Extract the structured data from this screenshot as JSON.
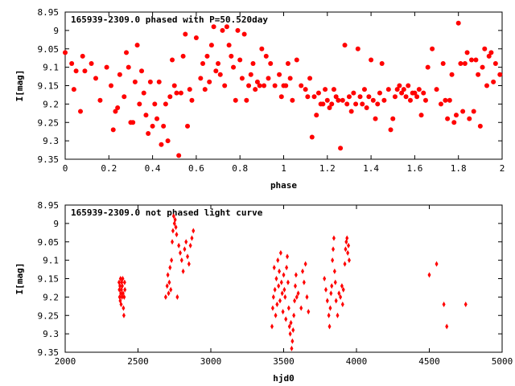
{
  "chart_data": [
    {
      "type": "scatter",
      "title": "165939-2309.0 phased with P=50.520day",
      "xlabel": "phase",
      "ylabel": "I[mag]",
      "xlim": [
        0,
        2
      ],
      "ylim": [
        9.35,
        8.95
      ],
      "y_inverted": true,
      "x_ticks": [
        0,
        0.2,
        0.4,
        0.6,
        0.8,
        1,
        1.2,
        1.4,
        1.6,
        1.8,
        2
      ],
      "x_tick_labels": [
        "0",
        "0.2",
        "0.4",
        "0.6",
        "0.8",
        "1",
        "1.2",
        "1.4",
        "1.6",
        "1.8",
        "2"
      ],
      "y_ticks": [
        8.95,
        9.0,
        9.05,
        9.1,
        9.15,
        9.2,
        9.25,
        9.3,
        9.35
      ],
      "y_tick_labels": [
        "8.95",
        "9",
        "9.05",
        "9.1",
        "9.15",
        "9.2",
        "9.25",
        "9.3",
        "9.35"
      ],
      "marker": "filled-circle",
      "color": "#ff0000",
      "points": [
        [
          0.0,
          9.06
        ],
        [
          0.03,
          9.09
        ],
        [
          0.04,
          9.16
        ],
        [
          0.05,
          9.11
        ],
        [
          0.07,
          9.22
        ],
        [
          0.08,
          9.07
        ],
        [
          0.09,
          9.11
        ],
        [
          0.12,
          9.09
        ],
        [
          0.14,
          9.13
        ],
        [
          0.16,
          9.19
        ],
        [
          0.19,
          9.1
        ],
        [
          0.21,
          9.15
        ],
        [
          0.22,
          9.27
        ],
        [
          0.23,
          9.22
        ],
        [
          0.24,
          9.21
        ],
        [
          0.25,
          9.12
        ],
        [
          0.27,
          9.18
        ],
        [
          0.28,
          9.06
        ],
        [
          0.29,
          9.1
        ],
        [
          0.3,
          9.25
        ],
        [
          0.31,
          9.25
        ],
        [
          0.32,
          9.14
        ],
        [
          0.33,
          9.04
        ],
        [
          0.34,
          9.2
        ],
        [
          0.35,
          9.11
        ],
        [
          0.36,
          9.17
        ],
        [
          0.37,
          9.23
        ],
        [
          0.38,
          9.28
        ],
        [
          0.39,
          9.14
        ],
        [
          0.4,
          9.26
        ],
        [
          0.41,
          9.2
        ],
        [
          0.42,
          9.24
        ],
        [
          0.43,
          9.14
        ],
        [
          0.44,
          9.31
        ],
        [
          0.45,
          9.26
        ],
        [
          0.46,
          9.2
        ],
        [
          0.47,
          9.3
        ],
        [
          0.48,
          9.18
        ],
        [
          0.49,
          9.08
        ],
        [
          0.5,
          9.15
        ],
        [
          0.51,
          9.17
        ],
        [
          0.52,
          9.34
        ],
        [
          0.53,
          9.17
        ],
        [
          0.54,
          9.07
        ],
        [
          0.55,
          9.01
        ],
        [
          0.56,
          9.26
        ],
        [
          0.57,
          9.16
        ],
        [
          0.58,
          9.19
        ],
        [
          0.6,
          9.02
        ],
        [
          0.62,
          9.13
        ],
        [
          0.63,
          9.09
        ],
        [
          0.64,
          9.16
        ],
        [
          0.65,
          9.07
        ],
        [
          0.66,
          9.14
        ],
        [
          0.67,
          9.04
        ],
        [
          0.68,
          8.99
        ],
        [
          0.69,
          9.11
        ],
        [
          0.7,
          9.09
        ],
        [
          0.71,
          9.12
        ],
        [
          0.72,
          9.0
        ],
        [
          0.73,
          9.15
        ],
        [
          0.74,
          8.99
        ],
        [
          0.75,
          9.04
        ],
        [
          0.76,
          9.07
        ],
        [
          0.77,
          9.1
        ],
        [
          0.78,
          9.19
        ],
        [
          0.79,
          9.0
        ],
        [
          0.8,
          9.08
        ],
        [
          0.81,
          9.13
        ],
        [
          0.82,
          9.01
        ],
        [
          0.83,
          9.19
        ],
        [
          0.84,
          9.15
        ],
        [
          0.85,
          9.12
        ],
        [
          0.86,
          9.09
        ],
        [
          0.87,
          9.16
        ],
        [
          0.88,
          9.14
        ],
        [
          0.89,
          9.15
        ],
        [
          0.9,
          9.05
        ],
        [
          0.91,
          9.15
        ],
        [
          0.92,
          9.07
        ],
        [
          0.93,
          9.13
        ],
        [
          0.94,
          9.09
        ],
        [
          0.96,
          9.15
        ],
        [
          0.98,
          9.12
        ],
        [
          0.99,
          9.18
        ],
        [
          1.0,
          9.15
        ],
        [
          1.01,
          9.15
        ],
        [
          1.02,
          9.09
        ],
        [
          1.03,
          9.13
        ],
        [
          1.04,
          9.19
        ],
        [
          1.06,
          9.08
        ],
        [
          1.08,
          9.15
        ],
        [
          1.1,
          9.16
        ],
        [
          1.11,
          9.18
        ],
        [
          1.12,
          9.13
        ],
        [
          1.13,
          9.29
        ],
        [
          1.14,
          9.18
        ],
        [
          1.15,
          9.23
        ],
        [
          1.16,
          9.17
        ],
        [
          1.17,
          9.2
        ],
        [
          1.18,
          9.2
        ],
        [
          1.19,
          9.16
        ],
        [
          1.2,
          9.19
        ],
        [
          1.21,
          9.21
        ],
        [
          1.22,
          9.2
        ],
        [
          1.23,
          9.16
        ],
        [
          1.24,
          9.18
        ],
        [
          1.25,
          9.19
        ],
        [
          1.26,
          9.32
        ],
        [
          1.27,
          9.19
        ],
        [
          1.28,
          9.04
        ],
        [
          1.29,
          9.2
        ],
        [
          1.3,
          9.18
        ],
        [
          1.31,
          9.22
        ],
        [
          1.32,
          9.17
        ],
        [
          1.33,
          9.2
        ],
        [
          1.34,
          9.05
        ],
        [
          1.35,
          9.18
        ],
        [
          1.36,
          9.2
        ],
        [
          1.37,
          9.16
        ],
        [
          1.38,
          9.21
        ],
        [
          1.39,
          9.18
        ],
        [
          1.4,
          9.08
        ],
        [
          1.41,
          9.19
        ],
        [
          1.42,
          9.24
        ],
        [
          1.43,
          9.2
        ],
        [
          1.44,
          9.17
        ],
        [
          1.45,
          9.09
        ],
        [
          1.46,
          9.19
        ],
        [
          1.48,
          9.16
        ],
        [
          1.49,
          9.27
        ],
        [
          1.5,
          9.24
        ],
        [
          1.51,
          9.18
        ],
        [
          1.52,
          9.16
        ],
        [
          1.53,
          9.15
        ],
        [
          1.54,
          9.17
        ],
        [
          1.55,
          9.16
        ],
        [
          1.56,
          9.18
        ],
        [
          1.57,
          9.15
        ],
        [
          1.58,
          9.19
        ],
        [
          1.59,
          9.17
        ],
        [
          1.6,
          9.17
        ],
        [
          1.61,
          9.18
        ],
        [
          1.62,
          9.16
        ],
        [
          1.63,
          9.23
        ],
        [
          1.64,
          9.17
        ],
        [
          1.65,
          9.19
        ],
        [
          1.66,
          9.1
        ],
        [
          1.68,
          9.05
        ],
        [
          1.7,
          9.16
        ],
        [
          1.72,
          9.2
        ],
        [
          1.73,
          9.09
        ],
        [
          1.74,
          9.19
        ],
        [
          1.75,
          9.24
        ],
        [
          1.76,
          9.19
        ],
        [
          1.77,
          9.12
        ],
        [
          1.78,
          9.25
        ],
        [
          1.79,
          9.23
        ],
        [
          1.8,
          8.98
        ],
        [
          1.81,
          9.09
        ],
        [
          1.82,
          9.22
        ],
        [
          1.83,
          9.09
        ],
        [
          1.84,
          9.06
        ],
        [
          1.85,
          9.24
        ],
        [
          1.86,
          9.08
        ],
        [
          1.87,
          9.22
        ],
        [
          1.88,
          9.08
        ],
        [
          1.89,
          9.12
        ],
        [
          1.9,
          9.26
        ],
        [
          1.91,
          9.1
        ],
        [
          1.92,
          9.05
        ],
        [
          1.93,
          9.15
        ],
        [
          1.94,
          9.07
        ],
        [
          1.95,
          9.06
        ],
        [
          1.96,
          9.14
        ],
        [
          1.97,
          9.09
        ],
        [
          1.99,
          9.12
        ]
      ]
    },
    {
      "type": "scatter",
      "title": "165939-2309.0 not phased light curve",
      "xlabel": "hjd0",
      "ylabel": "I[mag]",
      "xlim": [
        2000,
        5000
      ],
      "ylim": [
        9.35,
        8.95
      ],
      "y_inverted": true,
      "x_ticks": [
        2000,
        2500,
        3000,
        3500,
        4000,
        4500,
        5000
      ],
      "x_tick_labels": [
        "2000",
        "2500",
        "3000",
        "3500",
        "4000",
        "4500",
        "5000"
      ],
      "y_ticks": [
        8.95,
        9.0,
        9.05,
        9.1,
        9.15,
        9.2,
        9.25,
        9.3,
        9.35
      ],
      "y_tick_labels": [
        "8.95",
        "9",
        "9.05",
        "9.1",
        "9.15",
        "9.2",
        "9.25",
        "9.3",
        "9.35"
      ],
      "marker": "diamond",
      "color": "#ff0000",
      "points": [
        [
          2370,
          9.16
        ],
        [
          2372,
          9.18
        ],
        [
          2374,
          9.2
        ],
        [
          2376,
          9.17
        ],
        [
          2378,
          9.21
        ],
        [
          2380,
          9.15
        ],
        [
          2382,
          9.19
        ],
        [
          2384,
          9.22
        ],
        [
          2386,
          9.18
        ],
        [
          2388,
          9.16
        ],
        [
          2390,
          9.2
        ],
        [
          2392,
          9.17
        ],
        [
          2395,
          9.15
        ],
        [
          2397,
          9.19
        ],
        [
          2400,
          9.23
        ],
        [
          2403,
          9.25
        ],
        [
          2405,
          9.2
        ],
        [
          2408,
          9.16
        ],
        [
          2410,
          9.18
        ],
        [
          2690,
          9.2
        ],
        [
          2700,
          9.17
        ],
        [
          2705,
          9.14
        ],
        [
          2710,
          9.19
        ],
        [
          2715,
          9.16
        ],
        [
          2720,
          9.12
        ],
        [
          2725,
          9.18
        ],
        [
          2730,
          9.1
        ],
        [
          2735,
          9.05
        ],
        [
          2740,
          9.02
        ],
        [
          2745,
          8.98
        ],
        [
          2750,
          9.0
        ],
        [
          2755,
          8.99
        ],
        [
          2760,
          9.01
        ],
        [
          2765,
          9.03
        ],
        [
          2770,
          9.2
        ],
        [
          2780,
          9.06
        ],
        [
          2790,
          9.08
        ],
        [
          2800,
          9.1
        ],
        [
          2810,
          9.13
        ],
        [
          2820,
          9.07
        ],
        [
          2830,
          9.05
        ],
        [
          2840,
          9.09
        ],
        [
          2850,
          9.11
        ],
        [
          2860,
          9.06
        ],
        [
          2870,
          9.04
        ],
        [
          2880,
          9.02
        ],
        [
          3420,
          9.28
        ],
        [
          3425,
          9.23
        ],
        [
          3430,
          9.2
        ],
        [
          3435,
          9.12
        ],
        [
          3440,
          9.18
        ],
        [
          3445,
          9.25
        ],
        [
          3450,
          9.15
        ],
        [
          3455,
          9.22
        ],
        [
          3460,
          9.1
        ],
        [
          3465,
          9.17
        ],
        [
          3470,
          9.13
        ],
        [
          3475,
          9.21
        ],
        [
          3480,
          9.08
        ],
        [
          3485,
          9.16
        ],
        [
          3490,
          9.19
        ],
        [
          3495,
          9.24
        ],
        [
          3500,
          9.14
        ],
        [
          3505,
          9.18
        ],
        [
          3510,
          9.2
        ],
        [
          3515,
          9.26
        ],
        [
          3520,
          9.12
        ],
        [
          3525,
          9.09
        ],
        [
          3530,
          9.16
        ],
        [
          3535,
          9.23
        ],
        [
          3540,
          9.28
        ],
        [
          3545,
          9.3
        ],
        [
          3550,
          9.27
        ],
        [
          3555,
          9.34
        ],
        [
          3560,
          9.32
        ],
        [
          3565,
          9.29
        ],
        [
          3570,
          9.25
        ],
        [
          3575,
          9.21
        ],
        [
          3580,
          9.17
        ],
        [
          3585,
          9.14
        ],
        [
          3590,
          9.2
        ],
        [
          3600,
          9.19
        ],
        [
          3620,
          9.23
        ],
        [
          3630,
          9.13
        ],
        [
          3640,
          9.16
        ],
        [
          3650,
          9.11
        ],
        [
          3660,
          9.2
        ],
        [
          3670,
          9.24
        ],
        [
          3780,
          9.15
        ],
        [
          3790,
          9.18
        ],
        [
          3800,
          9.21
        ],
        [
          3810,
          9.25
        ],
        [
          3815,
          9.28
        ],
        [
          3820,
          9.23
        ],
        [
          3825,
          9.19
        ],
        [
          3830,
          9.17
        ],
        [
          3835,
          9.1
        ],
        [
          3840,
          9.07
        ],
        [
          3845,
          9.04
        ],
        [
          3850,
          9.13
        ],
        [
          3855,
          9.16
        ],
        [
          3860,
          9.21
        ],
        [
          3870,
          9.25
        ],
        [
          3880,
          9.19
        ],
        [
          3890,
          9.2
        ],
        [
          3900,
          9.17
        ],
        [
          3905,
          9.22
        ],
        [
          3910,
          9.18
        ],
        [
          3920,
          9.11
        ],
        [
          3925,
          9.07
        ],
        [
          3930,
          9.05
        ],
        [
          3935,
          9.04
        ],
        [
          3940,
          9.08
        ],
        [
          3945,
          9.06
        ],
        [
          3950,
          9.1
        ],
        [
          4500,
          9.14
        ],
        [
          4550,
          9.11
        ],
        [
          4600,
          9.22
        ],
        [
          4620,
          9.28
        ],
        [
          4750,
          9.22
        ]
      ]
    }
  ]
}
